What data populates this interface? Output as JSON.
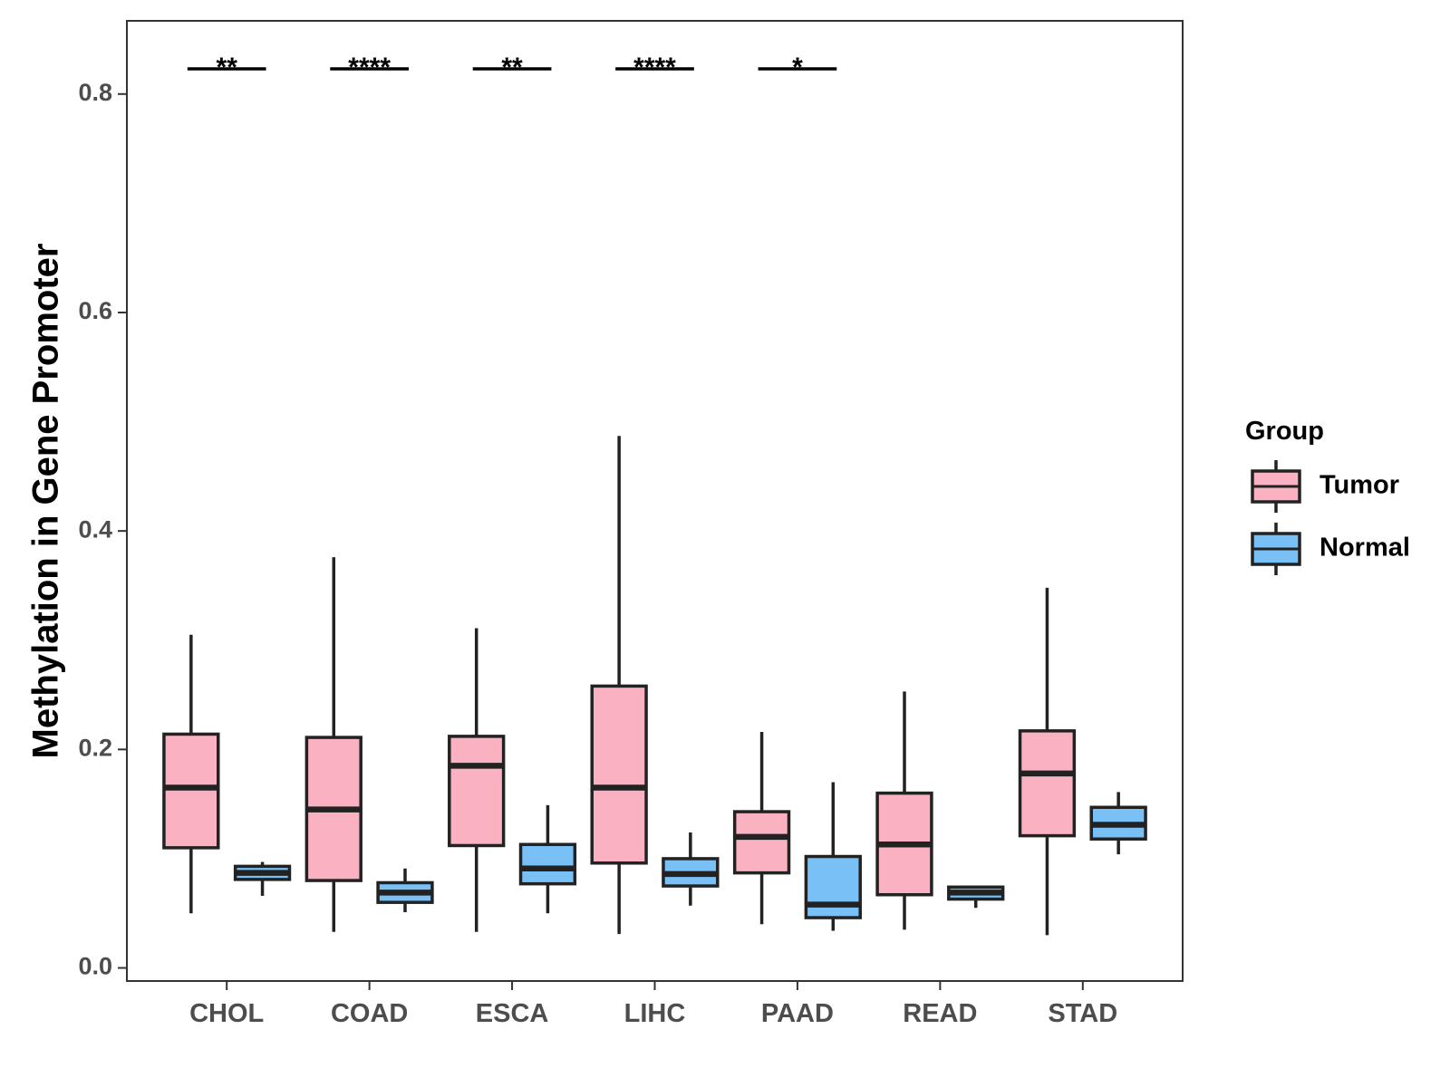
{
  "chart_data": {
    "type": "boxplot",
    "title": "",
    "xlabel": "",
    "ylabel": "Methylation in Gene Promoter",
    "ylim": [
      -0.012,
      0.867
    ],
    "yticks": [
      0.0,
      0.2,
      0.4,
      0.6,
      0.8
    ],
    "ytick_labels": [
      "0.0",
      "0.2",
      "0.4",
      "0.6",
      "0.8"
    ],
    "grid": false,
    "categories": [
      "CHOL",
      "COAD",
      "ESCA",
      "LIHC",
      "PAAD",
      "READ",
      "STAD"
    ],
    "legend": {
      "title": "Group",
      "position": "right",
      "entries": [
        {
          "name": "Tumor",
          "color": "#FAB1C1"
        },
        {
          "name": "Normal",
          "color": "#78C0F6"
        }
      ]
    },
    "series": [
      {
        "name": "Tumor",
        "color": "#FAB1C1",
        "boxes": [
          {
            "min": 0.05,
            "q1": 0.11,
            "median": 0.165,
            "q3": 0.214,
            "max": 0.305
          },
          {
            "min": 0.033,
            "q1": 0.08,
            "median": 0.145,
            "q3": 0.211,
            "max": 0.376
          },
          {
            "min": 0.033,
            "q1": 0.112,
            "median": 0.185,
            "q3": 0.212,
            "max": 0.311
          },
          {
            "min": 0.031,
            "q1": 0.096,
            "median": 0.165,
            "q3": 0.258,
            "max": 0.487
          },
          {
            "min": 0.04,
            "q1": 0.087,
            "median": 0.12,
            "q3": 0.143,
            "max": 0.216
          },
          {
            "min": 0.035,
            "q1": 0.067,
            "median": 0.113,
            "q3": 0.16,
            "max": 0.253
          },
          {
            "min": 0.03,
            "q1": 0.121,
            "median": 0.178,
            "q3": 0.217,
            "max": 0.348
          }
        ]
      },
      {
        "name": "Normal",
        "color": "#78C0F6",
        "boxes": [
          {
            "min": 0.066,
            "q1": 0.081,
            "median": 0.087,
            "q3": 0.093,
            "max": 0.097
          },
          {
            "min": 0.051,
            "q1": 0.06,
            "median": 0.069,
            "q3": 0.078,
            "max": 0.091
          },
          {
            "min": 0.05,
            "q1": 0.077,
            "median": 0.091,
            "q3": 0.113,
            "max": 0.149
          },
          {
            "min": 0.057,
            "q1": 0.075,
            "median": 0.086,
            "q3": 0.1,
            "max": 0.124
          },
          {
            "min": 0.034,
            "q1": 0.046,
            "median": 0.058,
            "q3": 0.102,
            "max": 0.17
          },
          {
            "min": 0.055,
            "q1": 0.063,
            "median": 0.069,
            "q3": 0.074,
            "max": 0.075
          },
          {
            "min": 0.104,
            "q1": 0.118,
            "median": 0.131,
            "q3": 0.147,
            "max": 0.161
          }
        ]
      }
    ],
    "significance": [
      {
        "category": "CHOL",
        "label": "**",
        "y": 0.823
      },
      {
        "category": "COAD",
        "label": "****",
        "y": 0.823
      },
      {
        "category": "ESCA",
        "label": "**",
        "y": 0.823
      },
      {
        "category": "LIHC",
        "label": "****",
        "y": 0.823
      },
      {
        "category": "PAAD",
        "label": "*",
        "y": 0.823
      }
    ]
  }
}
